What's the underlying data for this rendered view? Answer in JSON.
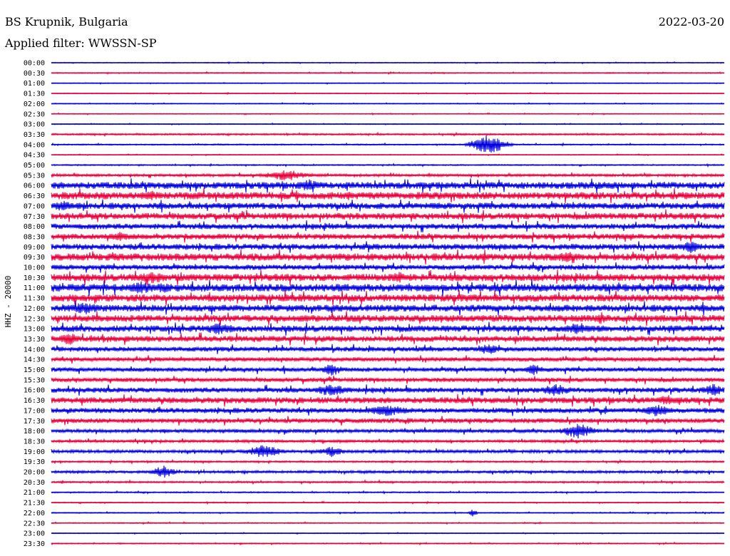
{
  "header": {
    "station": "BS Krupnik, Bulgaria",
    "date": "2022-03-20",
    "filter_label": "Applied filter: WWSSN-SP"
  },
  "chart_data": {
    "type": "line",
    "title": "BS Krupnik, Bulgaria",
    "ylabel": "HHZ - 20000",
    "colors": {
      "even_rows": "#0000dd",
      "odd_rows": "#e8003c",
      "background": "#ffffff"
    },
    "row_labels": [
      "00:00",
      "00:30",
      "01:00",
      "01:30",
      "02:00",
      "02:30",
      "03:00",
      "03:30",
      "04:00",
      "04:30",
      "05:00",
      "05:30",
      "06:00",
      "06:30",
      "07:00",
      "07:30",
      "08:00",
      "08:30",
      "09:00",
      "09:30",
      "10:00",
      "10:30",
      "11:00",
      "11:30",
      "12:00",
      "12:30",
      "13:00",
      "13:30",
      "14:00",
      "14:30",
      "15:00",
      "15:30",
      "16:00",
      "16:30",
      "17:00",
      "17:30",
      "18:00",
      "18:30",
      "19:00",
      "19:30",
      "20:00",
      "20:30",
      "21:00",
      "21:30",
      "22:00",
      "22:30",
      "23:00",
      "23:30"
    ],
    "noise_level": [
      0.4,
      0.5,
      0.4,
      0.4,
      0.4,
      0.4,
      0.4,
      0.8,
      0.6,
      0.4,
      0.6,
      1.2,
      3.2,
      3.4,
      3.0,
      3.0,
      2.6,
      2.6,
      2.8,
      3.4,
      2.4,
      3.4,
      3.6,
      3.4,
      3.2,
      3.2,
      3.0,
      2.8,
      2.2,
      2.0,
      2.0,
      2.0,
      2.4,
      2.8,
      2.4,
      2.2,
      1.6,
      1.2,
      1.4,
      0.8,
      1.2,
      0.8,
      0.6,
      0.5,
      0.5,
      0.5,
      0.4,
      0.5
    ],
    "events": [
      {
        "row": "04:00",
        "minute": 19.5,
        "amplitude": 14,
        "duration_min": 1.5
      },
      {
        "row": "05:30",
        "minute": 10.5,
        "amplitude": 8,
        "duration_min": 2.0
      },
      {
        "row": "06:00",
        "minute": 11.5,
        "amplitude": 9,
        "duration_min": 1.2
      },
      {
        "row": "06:30",
        "minute": 4.5,
        "amplitude": 8,
        "duration_min": 1.0
      },
      {
        "row": "07:00",
        "minute": 0.5,
        "amplitude": 8,
        "duration_min": 1.0
      },
      {
        "row": "08:30",
        "minute": 3.0,
        "amplitude": 7,
        "duration_min": 1.2
      },
      {
        "row": "09:00",
        "minute": 28.5,
        "amplitude": 9,
        "duration_min": 1.0
      },
      {
        "row": "09:30",
        "minute": 23.0,
        "amplitude": 8,
        "duration_min": 1.5
      },
      {
        "row": "10:30",
        "minute": 4.5,
        "amplitude": 9,
        "duration_min": 1.5
      },
      {
        "row": "10:30",
        "minute": 15.5,
        "amplitude": 8,
        "duration_min": 1.0
      },
      {
        "row": "11:00",
        "minute": 4.0,
        "amplitude": 10,
        "duration_min": 1.5
      },
      {
        "row": "11:00",
        "minute": 5.0,
        "amplitude": 8,
        "duration_min": 1.0
      },
      {
        "row": "12:00",
        "minute": 1.5,
        "amplitude": 9,
        "duration_min": 1.5
      },
      {
        "row": "12:30",
        "minute": 24.5,
        "amplitude": 8,
        "duration_min": 1.0
      },
      {
        "row": "13:00",
        "minute": 7.5,
        "amplitude": 9,
        "duration_min": 1.5
      },
      {
        "row": "13:00",
        "minute": 23.5,
        "amplitude": 9,
        "duration_min": 1.5
      },
      {
        "row": "13:30",
        "minute": 0.8,
        "amplitude": 9,
        "duration_min": 1.0
      },
      {
        "row": "14:00",
        "minute": 19.5,
        "amplitude": 8,
        "duration_min": 1.0
      },
      {
        "row": "15:00",
        "minute": 12.5,
        "amplitude": 9,
        "duration_min": 1.0
      },
      {
        "row": "15:00",
        "minute": 21.5,
        "amplitude": 8,
        "duration_min": 1.0
      },
      {
        "row": "16:00",
        "minute": 12.5,
        "amplitude": 9,
        "duration_min": 1.5
      },
      {
        "row": "16:00",
        "minute": 22.5,
        "amplitude": 9,
        "duration_min": 1.5
      },
      {
        "row": "16:00",
        "minute": 29.5,
        "amplitude": 10,
        "duration_min": 1.0
      },
      {
        "row": "16:30",
        "minute": 27.5,
        "amplitude": 8,
        "duration_min": 1.2
      },
      {
        "row": "17:00",
        "minute": 15.0,
        "amplitude": 8,
        "duration_min": 2.0
      },
      {
        "row": "17:00",
        "minute": 27.0,
        "amplitude": 9,
        "duration_min": 1.2
      },
      {
        "row": "18:00",
        "minute": 23.5,
        "amplitude": 11,
        "duration_min": 1.5
      },
      {
        "row": "19:00",
        "minute": 9.5,
        "amplitude": 10,
        "duration_min": 1.5
      },
      {
        "row": "19:00",
        "minute": 12.5,
        "amplitude": 8,
        "duration_min": 1.0
      },
      {
        "row": "20:00",
        "minute": 5.0,
        "amplitude": 9,
        "duration_min": 1.0
      },
      {
        "row": "22:00",
        "minute": 18.8,
        "amplitude": 6,
        "duration_min": 0.3
      }
    ]
  }
}
